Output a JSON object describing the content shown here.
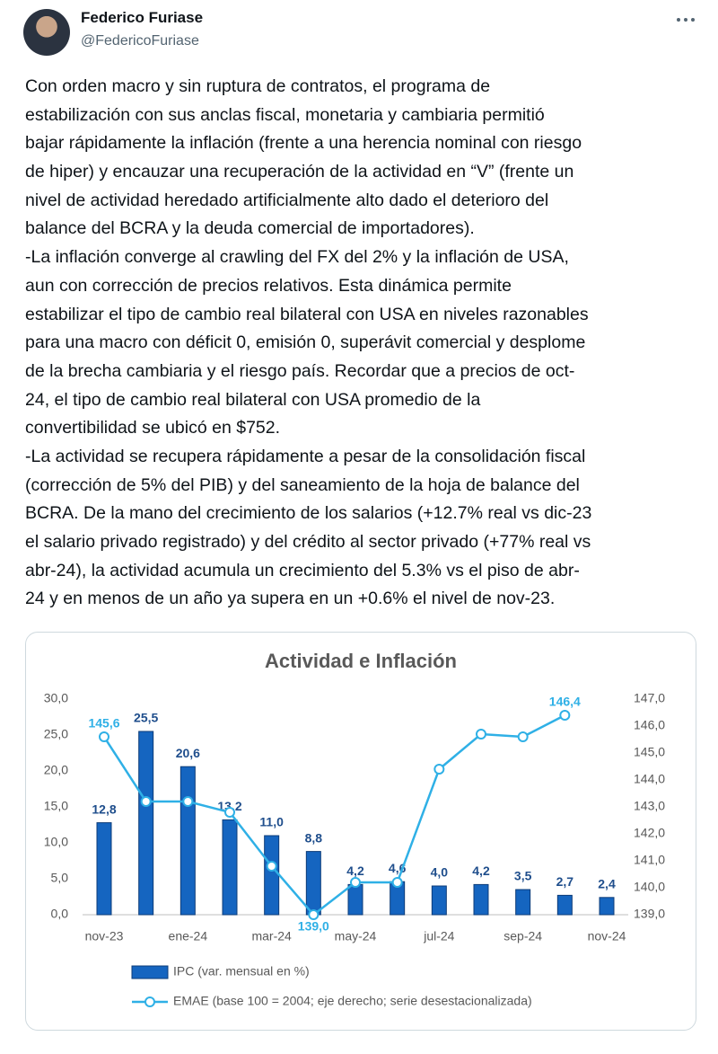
{
  "author": "Federico Furiase",
  "handle": "@FedericoFuriase",
  "text_lines": [
    "Con orden macro y sin ruptura de contratos, el programa de",
    "estabilización con sus anclas fiscal, monetaria y cambiaria permitió",
    "bajar rápidamente la inflación (frente a una herencia nominal con riesgo",
    "de hiper) y encauzar una recuperación de la actividad en “V” (frente un",
    "nivel de actividad heredado artificialmente alto dado el deterioro del",
    "balance del BCRA y la deuda comercial de importadores).",
    "-La inflación converge al crawling del FX del 2% y la inflación de USA,",
    "aun con corrección de precios relativos. Esta dinámica permite",
    "estabilizar el tipo de cambio real bilateral con USA en niveles razonables",
    "para una macro con déficit 0, emisión 0, superávit comercial y desplome",
    "de la brecha cambiaria y el riesgo país. Recordar que a precios de oct-",
    "24, el tipo de cambio real bilateral con USA promedio de la",
    "convertibilidad se ubicó en $752.",
    "-La actividad se recupera rápidamente a pesar de la consolidación fiscal",
    "(corrección de 5% del PIB) y del saneamiento de la hoja de balance del",
    "BCRA. De la mano del crecimiento de los salarios (+12.7% real vs dic-23",
    "el salario privado registrado) y del crédito al sector privado (+77% real vs",
    "abr-24), la actividad acumula un crecimiento del 5.3% vs el piso de abr-",
    "24 y en menos de un año ya supera en un +0.6% el nivel de nov-23."
  ],
  "chart_data": {
    "type": "bar-line",
    "title": "Actividad e Inflación",
    "categories": [
      "nov-23",
      null,
      "ene-24",
      null,
      "mar-24",
      null,
      "may-24",
      null,
      "jul-24",
      null,
      "sep-24",
      null,
      "nov-24"
    ],
    "series": [
      {
        "name": "IPC (var. mensual en %)",
        "type": "bar",
        "color": "#1565c0",
        "values": [
          12.8,
          25.5,
          20.6,
          13.2,
          11.0,
          8.8,
          4.2,
          4.6,
          4.0,
          4.2,
          3.5,
          2.7,
          2.4
        ],
        "value_labels": [
          "12,8",
          "25,5",
          "20,6",
          "13,2",
          "11,0",
          "8,8",
          "4,2",
          "4,6",
          "4,0",
          "4,2",
          "3,5",
          "2,7",
          "2,4"
        ]
      },
      {
        "name": "EMAE (base 100 = 2004; eje derecho; serie desestacionalizada)",
        "type": "line",
        "axis": "y2",
        "color": "#2fb0e6",
        "values": [
          145.6,
          143.2,
          143.2,
          142.8,
          140.8,
          139.0,
          140.2,
          140.2,
          144.4,
          145.7,
          145.6,
          146.4,
          null
        ],
        "value_labels": [
          "145,6",
          null,
          null,
          null,
          null,
          "139,0",
          null,
          null,
          null,
          null,
          null,
          "146,4",
          null
        ]
      }
    ],
    "ylim": [
      0,
      30
    ],
    "yticks": [
      {
        "value": 0,
        "label": "0,0"
      },
      {
        "value": 5,
        "label": "5,0"
      },
      {
        "value": 10,
        "label": "10,0"
      },
      {
        "value": 15,
        "label": "15,0"
      },
      {
        "value": 20,
        "label": "20,0"
      },
      {
        "value": 25,
        "label": "25,0"
      },
      {
        "value": 30,
        "label": "30,0"
      }
    ],
    "y2lim": [
      139,
      147
    ],
    "y2ticks": [
      {
        "value": 139,
        "label": "139,0"
      },
      {
        "value": 140,
        "label": "140,0"
      },
      {
        "value": 141,
        "label": "141,0"
      },
      {
        "value": 142,
        "label": "142,0"
      },
      {
        "value": 143,
        "label": "143,0"
      },
      {
        "value": 144,
        "label": "144,0"
      },
      {
        "value": 145,
        "label": "145,0"
      },
      {
        "value": 146,
        "label": "146,0"
      },
      {
        "value": 147,
        "label": "147,0"
      }
    ],
    "legend": "bottom"
  }
}
